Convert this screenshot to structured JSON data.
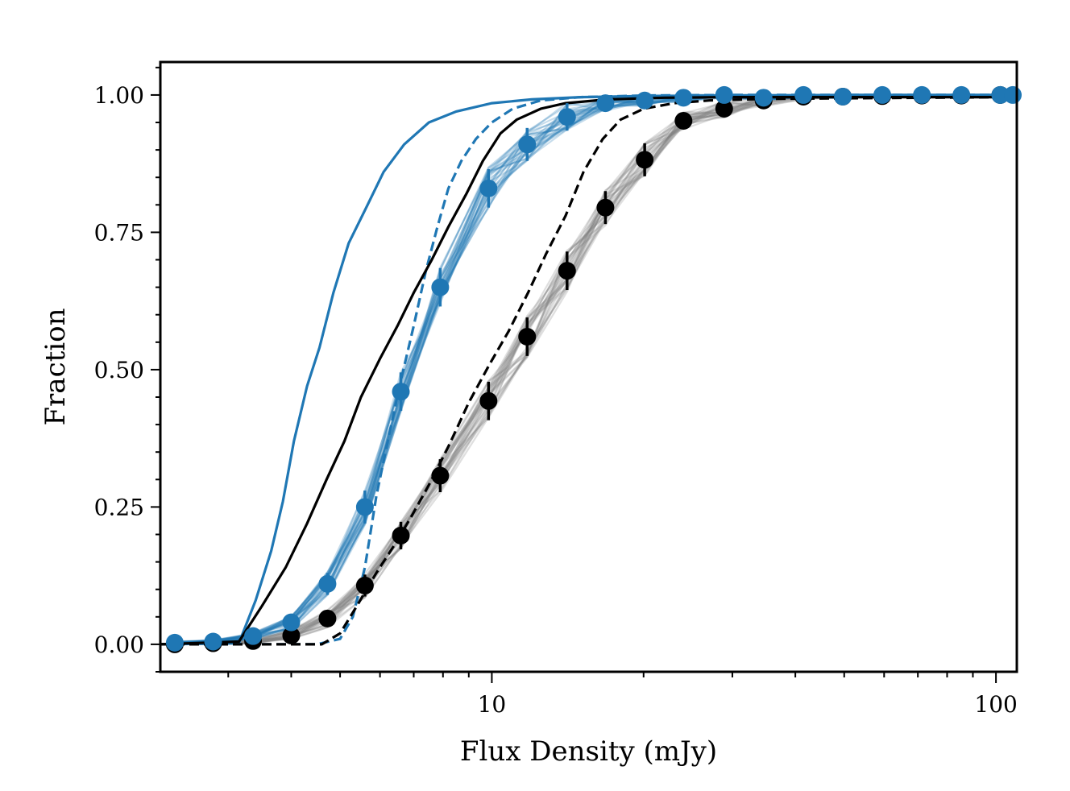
{
  "chart_data": {
    "type": "line",
    "title": "",
    "xlabel": "Flux Density (mJy)",
    "ylabel": "Fraction",
    "xscale": "log",
    "xlim": [
      2.2,
      110
    ],
    "ylim": [
      -0.05,
      1.06
    ],
    "x_tick_labels": [
      {
        "value": 10,
        "label": "10"
      },
      {
        "value": 100,
        "label": "100"
      }
    ],
    "y_tick_labels": [
      {
        "value": 0.0,
        "label": "0.00"
      },
      {
        "value": 0.25,
        "label": "0.25"
      },
      {
        "value": 0.5,
        "label": "0.50"
      },
      {
        "value": 0.75,
        "label": "0.75"
      },
      {
        "value": 1.0,
        "label": "1.00"
      }
    ],
    "grid": false,
    "colors": {
      "blue": "#1f77b4",
      "black": "#000000",
      "grey": "#808080",
      "light_blue": "#9ec5e3"
    },
    "series": [
      {
        "name": "blue model (solid)",
        "style": "solid",
        "color": "#1f77b4",
        "x": [
          2.2,
          3.15,
          3.4,
          3.65,
          3.85,
          4.05,
          4.3,
          4.55,
          4.85,
          5.2,
          5.6,
          6.1,
          6.7,
          7.5,
          8.5,
          10,
          12,
          15,
          20,
          30,
          50,
          110
        ],
        "y": [
          0.0,
          0.002,
          0.08,
          0.17,
          0.26,
          0.37,
          0.47,
          0.54,
          0.64,
          0.73,
          0.79,
          0.86,
          0.91,
          0.95,
          0.97,
          0.985,
          0.992,
          0.996,
          0.998,
          0.999,
          1.0,
          1.0
        ]
      },
      {
        "name": "blue model (dashed)",
        "style": "dashed",
        "color": "#1f77b4",
        "x": [
          2.2,
          4.5,
          5.0,
          5.3,
          5.6,
          5.9,
          6.25,
          6.6,
          7.0,
          7.4,
          7.8,
          8.2,
          8.7,
          9.3,
          10.0,
          11.0,
          12.5,
          15.0,
          20.0,
          30.0,
          110
        ],
        "y": [
          0.0,
          0.0,
          0.01,
          0.05,
          0.14,
          0.27,
          0.38,
          0.48,
          0.58,
          0.68,
          0.76,
          0.83,
          0.88,
          0.92,
          0.95,
          0.975,
          0.99,
          0.996,
          0.999,
          1.0,
          1.0
        ]
      },
      {
        "name": "black model (solid)",
        "style": "solid",
        "color": "#000000",
        "x": [
          2.2,
          3.15,
          3.5,
          3.9,
          4.3,
          4.7,
          5.1,
          5.5,
          6.0,
          6.5,
          7.0,
          7.6,
          8.2,
          8.9,
          9.6,
          10.4,
          11.2,
          12.5,
          14.0,
          17.0,
          22.0,
          30.0,
          110
        ],
        "y": [
          0.0,
          0.005,
          0.07,
          0.14,
          0.22,
          0.3,
          0.37,
          0.45,
          0.52,
          0.58,
          0.64,
          0.7,
          0.76,
          0.82,
          0.88,
          0.93,
          0.955,
          0.975,
          0.985,
          0.992,
          0.995,
          0.996,
          0.996
        ]
      },
      {
        "name": "black model (dashed)",
        "style": "dashed",
        "color": "#000000",
        "x": [
          2.2,
          4.6,
          5.0,
          5.4,
          5.9,
          6.4,
          6.9,
          7.5,
          8.2,
          9.0,
          9.9,
          10.8,
          11.8,
          12.8,
          14.0,
          15.2,
          16.6,
          18.0,
          20.0,
          23.0,
          27.0,
          35.0,
          110
        ],
        "y": [
          0.0,
          0.0,
          0.02,
          0.07,
          0.13,
          0.18,
          0.23,
          0.29,
          0.36,
          0.44,
          0.51,
          0.57,
          0.64,
          0.71,
          0.78,
          0.86,
          0.92,
          0.955,
          0.975,
          0.985,
          0.99,
          0.993,
          0.996
        ]
      },
      {
        "name": "blue points",
        "style": "markers",
        "color": "#1f77b4",
        "x": [
          2.35,
          2.8,
          3.36,
          4.0,
          4.72,
          5.6,
          6.6,
          7.9,
          9.85,
          11.75,
          14.1,
          16.8,
          20.1,
          24.0,
          28.9,
          34.6,
          41.5,
          49.7,
          59.5,
          71.3,
          85.4,
          102.0,
          108.0
        ],
        "y": [
          0.003,
          0.005,
          0.015,
          0.04,
          0.11,
          0.25,
          0.46,
          0.65,
          0.83,
          0.91,
          0.96,
          0.985,
          0.99,
          0.995,
          1.0,
          0.995,
          1.0,
          0.997,
          1.0,
          1.0,
          1.0,
          1.0,
          1.0
        ],
        "yerr": [
          0.002,
          0.003,
          0.006,
          0.012,
          0.02,
          0.03,
          0.035,
          0.035,
          0.035,
          0.03,
          0.025,
          0.015,
          0.01,
          0.008,
          0.005,
          0.005,
          0.004,
          0.004,
          0.003,
          0.003,
          0.003,
          0.002,
          0.002
        ]
      },
      {
        "name": "black points",
        "style": "markers",
        "color": "#000000",
        "x": [
          2.35,
          2.8,
          3.36,
          4.0,
          4.72,
          5.6,
          6.6,
          7.9,
          9.85,
          11.75,
          14.1,
          16.8,
          20.1,
          24.0,
          28.9,
          34.6,
          41.5,
          49.7,
          59.5,
          71.3,
          85.4,
          102.0
        ],
        "y": [
          0.0,
          0.002,
          0.006,
          0.016,
          0.047,
          0.107,
          0.198,
          0.307,
          0.443,
          0.56,
          0.68,
          0.795,
          0.882,
          0.953,
          0.975,
          0.99,
          0.997,
          0.997,
          0.998,
          0.999,
          0.999,
          1.0
        ],
        "yerr": [
          0.002,
          0.003,
          0.005,
          0.01,
          0.015,
          0.02,
          0.025,
          0.03,
          0.035,
          0.035,
          0.035,
          0.03,
          0.03,
          0.015,
          0.015,
          0.01,
          0.005,
          0.005,
          0.003,
          0.003,
          0.003,
          0.002
        ]
      }
    ],
    "realizations": {
      "blue": {
        "color": "#1f77b4",
        "alpha": 0.25,
        "count": 30
      },
      "grey": {
        "color": "#808080",
        "alpha": 0.25,
        "count": 30
      }
    }
  }
}
